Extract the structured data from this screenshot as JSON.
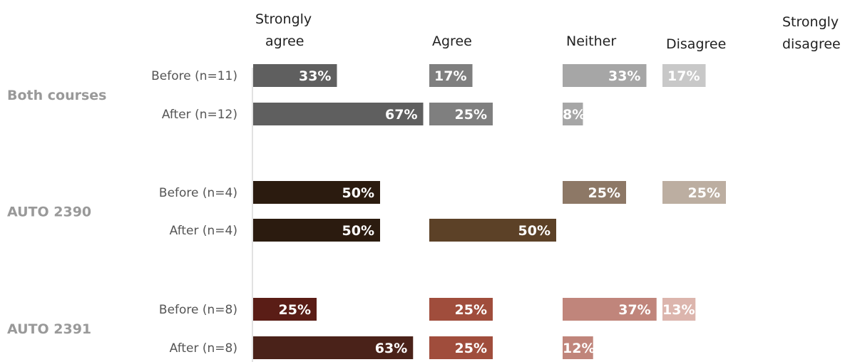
{
  "chart_data": {
    "type": "bar",
    "orientation": "horizontal",
    "layout": "small-multiples",
    "columns": [
      "Strongly agree",
      "Agree",
      "Neither",
      "Disagree",
      "Strongly disagree"
    ],
    "groups": [
      {
        "name": "Both courses",
        "rows": [
          {
            "label": "Before (n=11)",
            "values": [
              33,
              17,
              33,
              17,
              0
            ],
            "data_labels": [
              "33%",
              "17%",
              "33%",
              "17%",
              ""
            ]
          },
          {
            "label": "After (n=12)",
            "values": [
              67,
              25,
              8,
              0,
              0
            ],
            "data_labels": [
              "67%",
              "25%",
              "8%",
              "",
              ""
            ]
          }
        ],
        "colors": {
          "Before (n=11)": [
            "#5f5f5f",
            "#7f7f7f",
            "#a6a6a6",
            "#c8c8c8",
            "#dddddd"
          ],
          "After (n=12)": [
            "#5f5f5f",
            "#7f7f7f",
            "#a6a6a6",
            "#c8c8c8",
            "#dddddd"
          ]
        }
      },
      {
        "name": "AUTO 2390",
        "rows": [
          {
            "label": "Before (n=4)",
            "values": [
              50,
              0,
              25,
              25,
              0
            ],
            "data_labels": [
              "50%",
              "",
              "25%",
              "25%",
              ""
            ]
          },
          {
            "label": "After (n=4)",
            "values": [
              50,
              50,
              0,
              0,
              0
            ],
            "data_labels": [
              "50%",
              "50%",
              "",
              "",
              ""
            ]
          }
        ],
        "colors": {
          "Before (n=4)": [
            "#2b1b0f",
            "#5c4127",
            "#8d7866",
            "#bcaea1",
            "#ddd5cd"
          ],
          "After (n=4)": [
            "#2b1b0f",
            "#5c4127",
            "#8d7866",
            "#bcaea1",
            "#ddd5cd"
          ]
        }
      },
      {
        "name": "AUTO 2391",
        "rows": [
          {
            "label": "Before (n=8)",
            "values": [
              25,
              25,
              37,
              13,
              0
            ],
            "data_labels": [
              "25%",
              "25%",
              "37%",
              "13%",
              ""
            ]
          },
          {
            "label": "After (n=8)",
            "values": [
              63,
              25,
              12,
              0,
              0
            ],
            "data_labels": [
              "63%",
              "25%",
              "12%",
              "",
              ""
            ]
          }
        ],
        "colors": {
          "Before (n=8)": [
            "#5a1d16",
            "#a04d3c",
            "#c0857b",
            "#dcb5ad",
            "#eed8d3"
          ],
          "After (n=8)": [
            "#4a2219",
            "#a04d3c",
            "#c0857b",
            "#dcb5ad",
            "#eed8d3"
          ]
        }
      }
    ],
    "label_color": "#ffffff",
    "axis_line_color": "#d9d9d9",
    "legend": "none"
  }
}
